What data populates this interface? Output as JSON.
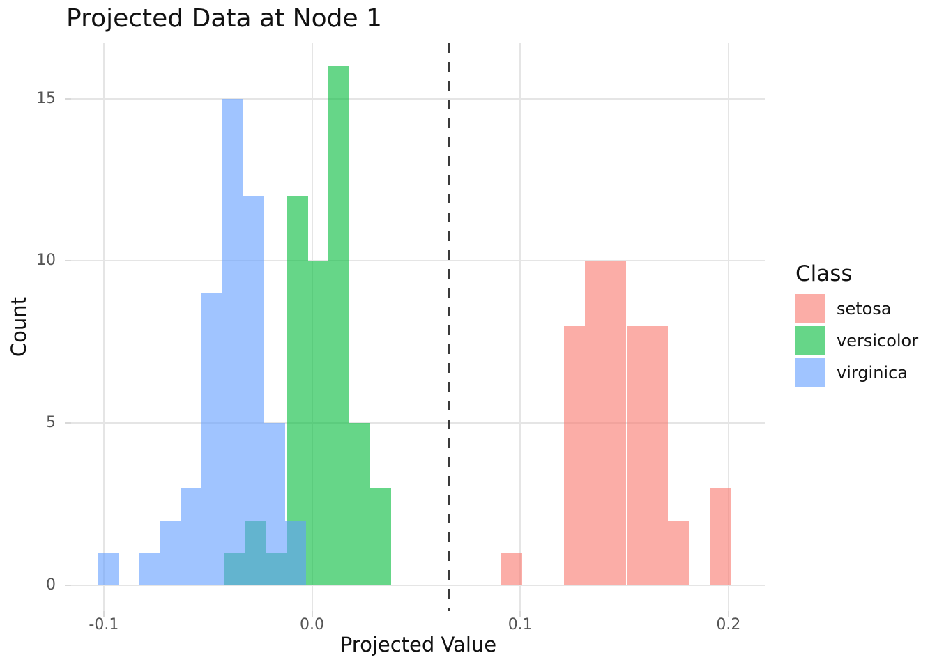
{
  "title": "Projected Data at Node 1",
  "chart_data": {
    "type": "histogram",
    "title": "Projected Data at Node 1",
    "xlabel": "Projected Value",
    "ylabel": "Count",
    "legend_title": "Class",
    "legend_position": "right",
    "grid": true,
    "binwidth": 0.01,
    "xlim": [
      -0.1157,
      0.2178
    ],
    "ylim": [
      -0.795,
      16.713
    ],
    "x_ticks": [
      -0.1,
      0.0,
      0.1,
      0.2
    ],
    "x_tick_labels": [
      "-0.1",
      "0.0",
      "0.1",
      "0.2"
    ],
    "y_ticks": [
      0,
      5,
      10,
      15
    ],
    "y_tick_labels": [
      "0",
      "5",
      "10",
      "15"
    ],
    "vline": {
      "x": 0.066,
      "style": "dashed",
      "color": "#3a3a3a"
    },
    "draw_order": [
      "setosa",
      "versicolor",
      "virginica"
    ],
    "series": [
      {
        "name": "setosa",
        "fill": "#F8766D",
        "alpha": 0.6,
        "bin_start": 0.091,
        "counts": [
          1,
          0,
          0,
          8,
          10,
          10,
          8,
          8,
          2,
          0,
          3
        ]
      },
      {
        "name": "versicolor",
        "fill": "#00BA38",
        "alpha": 0.6,
        "bin_start": -0.042,
        "counts": [
          1,
          2,
          1,
          12,
          10,
          16,
          5,
          3
        ]
      },
      {
        "name": "virginica",
        "fill": "#619CFF",
        "alpha": 0.6,
        "bin_start": -0.103,
        "counts": [
          1,
          0,
          1,
          2,
          3,
          9,
          15,
          12,
          5,
          2
        ]
      }
    ],
    "overlap_blend_color": "#63B3CF",
    "class_totals": {
      "setosa": 50,
      "versicolor": 50,
      "virginica": 50
    }
  }
}
